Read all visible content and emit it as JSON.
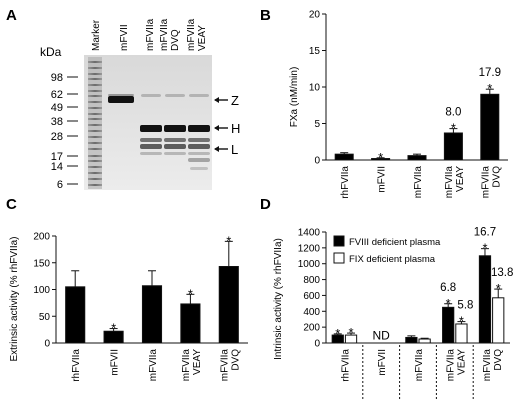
{
  "panels": {
    "A": {
      "letter": "A",
      "unit_label": "kDa",
      "lane_labels": [
        {
          "lines": [
            "Marker"
          ]
        },
        {
          "lines": [
            "mFVII"
          ]
        },
        {
          "lines": [
            "mFVIIa"
          ]
        },
        {
          "lines": [
            "mFVIIa",
            "DVQ"
          ]
        },
        {
          "lines": [
            "mFVIIa",
            "VEAY"
          ]
        }
      ],
      "marker_sizes": [
        "98",
        "62",
        "49",
        "38",
        "28",
        "17",
        "14",
        "6"
      ],
      "band_labels": [
        "Z",
        "H",
        "L"
      ]
    },
    "B": {
      "letter": "B",
      "ylabel": "FXa (nM/min)",
      "yticks": [
        "0",
        "5",
        "10",
        "15",
        "20"
      ],
      "categories": [
        [
          "rhFVIIa"
        ],
        [
          "mFVII"
        ],
        [
          "mFVIIa"
        ],
        [
          "mFVIIa",
          "VEAY"
        ],
        [
          "mFVIIa",
          "DVQ"
        ]
      ],
      "values": [
        0.8,
        0.2,
        0.6,
        3.7,
        9.0
      ],
      "errors": [
        0.2,
        0.1,
        0.2,
        0.6,
        0.7
      ],
      "star": "*",
      "stars": [
        false,
        true,
        false,
        true,
        true
      ],
      "value_labels": [
        "",
        "",
        "",
        "8.0",
        "17.9"
      ]
    },
    "C": {
      "letter": "C",
      "ylabel": "Extrinsic activity (% rhFVIIa)",
      "yticks": [
        "0",
        "50",
        "100",
        "150",
        "200"
      ],
      "categories": [
        [
          "rhFVIIa"
        ],
        [
          "mFVII"
        ],
        [
          "mFVIIa"
        ],
        [
          "mFVIIa",
          "VEAY"
        ],
        [
          "mFVIIa",
          "DVQ"
        ]
      ],
      "values": [
        105,
        22,
        107,
        73,
        143
      ],
      "errors": [
        30,
        5,
        28,
        18,
        47
      ],
      "star": "*",
      "stars": [
        false,
        true,
        false,
        true,
        true
      ]
    },
    "D": {
      "letter": "D",
      "ylabel": "Intrinsic  activity (% rhFVIIa)",
      "yticks": [
        "0",
        "200",
        "400",
        "600",
        "800",
        "1000",
        "1200",
        "1400"
      ],
      "legend": [
        "FVIII deficient plasma",
        "FIX deficient plasma"
      ],
      "categories": [
        [
          "rhFVIIa"
        ],
        [
          "mFVII"
        ],
        [
          "mFVIIa"
        ],
        [
          "mFVIIa",
          "VEAY"
        ],
        [
          "mFVIIa",
          "DVQ"
        ]
      ],
      "nd_label": "ND",
      "star": "*",
      "series_values": [
        [
          100,
          null,
          70,
          450,
          1100
        ],
        [
          100,
          null,
          50,
          240,
          570
        ]
      ],
      "series_errors": [
        [
          15,
          null,
          20,
          45,
          90
        ],
        [
          25,
          null,
          10,
          30,
          110
        ]
      ],
      "series_stars": [
        [
          true,
          false,
          false,
          true,
          true
        ],
        [
          true,
          false,
          false,
          true,
          true
        ]
      ],
      "value_labels": [
        "",
        "",
        "",
        "6.8",
        "16.7"
      ],
      "value_labels_b": [
        "",
        "",
        "",
        "5.8",
        "13.8"
      ]
    }
  },
  "chart_data": [
    {
      "type": "bar",
      "panel": "B",
      "categories": [
        "rhFVIIa",
        "mFVII",
        "mFVIIa",
        "mFVIIa VEAY",
        "mFVIIa DVQ"
      ],
      "values": [
        0.8,
        0.2,
        0.6,
        3.7,
        9.0
      ],
      "errors": [
        0.2,
        0.1,
        0.2,
        0.6,
        0.7
      ],
      "ylabel": "FXa (nM/min)",
      "ylim": [
        0,
        20
      ],
      "annotations": [
        "*",
        "8.0",
        "17.9"
      ]
    },
    {
      "type": "bar",
      "panel": "C",
      "categories": [
        "rhFVIIa",
        "mFVII",
        "mFVIIa",
        "mFVIIa VEAY",
        "mFVIIa DVQ"
      ],
      "values": [
        105,
        22,
        107,
        73,
        143
      ],
      "errors": [
        30,
        5,
        28,
        18,
        47
      ],
      "ylabel": "Extrinsic activity (% rhFVIIa)",
      "ylim": [
        0,
        200
      ]
    },
    {
      "type": "bar",
      "panel": "D",
      "categories": [
        "rhFVIIa",
        "mFVII",
        "mFVIIa",
        "mFVIIa VEAY",
        "mFVIIa DVQ"
      ],
      "series": [
        {
          "name": "FVIII deficient plasma",
          "values": [
            100,
            null,
            70,
            450,
            1100
          ],
          "color": "#000000"
        },
        {
          "name": "FIX deficient plasma",
          "values": [
            100,
            null,
            50,
            240,
            570
          ],
          "color": "#ffffff"
        }
      ],
      "ylabel": "Intrinsic  activity (% rhFVIIa)",
      "ylim": [
        0,
        1400
      ],
      "annotations": [
        "ND",
        "6.8",
        "5.8",
        "16.7",
        "13.8"
      ],
      "legend": "top-left"
    }
  ]
}
